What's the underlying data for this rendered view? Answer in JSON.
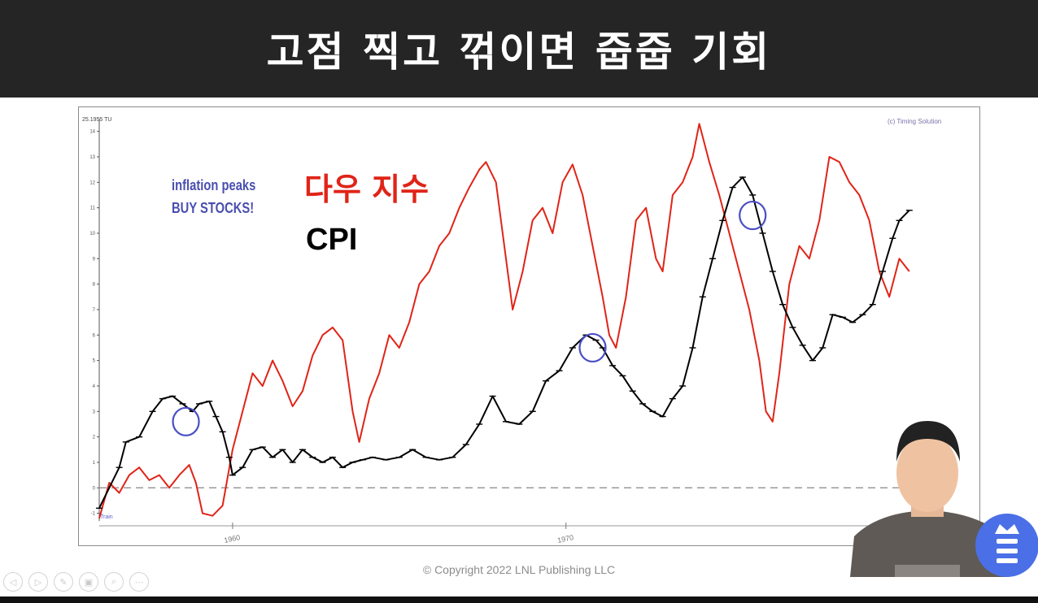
{
  "title": "고점 찍고 꺾이면 줍줍 기회",
  "chart_data": {
    "type": "line",
    "header_label": "25.1955 TU",
    "source_label": "(c) Timing Solution",
    "corner_label": "Train",
    "x_tick_labels": [
      "1960",
      "1970"
    ],
    "y_ticks": [
      -1,
      0,
      1,
      2,
      3,
      4,
      5,
      6,
      7,
      8,
      9,
      10,
      11,
      12,
      13,
      14
    ],
    "ylim": [
      -1.3,
      14.5
    ],
    "xlim": [
      1956.0,
      1981.5
    ],
    "zero_line": "dashed",
    "grid": false,
    "series": [
      {
        "name": "CPI",
        "color": "#000000",
        "marker": "tick",
        "points": [
          [
            1956.0,
            -0.8
          ],
          [
            1956.6,
            0.8
          ],
          [
            1956.8,
            1.8
          ],
          [
            1957.2,
            2.0
          ],
          [
            1957.6,
            3.0
          ],
          [
            1957.9,
            3.5
          ],
          [
            1958.2,
            3.6
          ],
          [
            1958.5,
            3.3
          ],
          [
            1958.8,
            3.0
          ],
          [
            1959.0,
            3.3
          ],
          [
            1959.3,
            3.4
          ],
          [
            1959.5,
            2.8
          ],
          [
            1959.7,
            2.2
          ],
          [
            1959.9,
            1.2
          ],
          [
            1960.0,
            0.5
          ],
          [
            1960.3,
            0.8
          ],
          [
            1960.6,
            1.5
          ],
          [
            1960.9,
            1.6
          ],
          [
            1961.2,
            1.2
          ],
          [
            1961.5,
            1.5
          ],
          [
            1961.8,
            1.0
          ],
          [
            1962.1,
            1.5
          ],
          [
            1962.4,
            1.2
          ],
          [
            1962.7,
            1.0
          ],
          [
            1963.0,
            1.2
          ],
          [
            1963.3,
            0.8
          ],
          [
            1963.6,
            1.0
          ],
          [
            1963.9,
            1.1
          ],
          [
            1964.2,
            1.2
          ],
          [
            1964.6,
            1.1
          ],
          [
            1965.0,
            1.2
          ],
          [
            1965.4,
            1.5
          ],
          [
            1965.8,
            1.2
          ],
          [
            1966.2,
            1.1
          ],
          [
            1966.6,
            1.2
          ],
          [
            1967.0,
            1.7
          ],
          [
            1967.4,
            2.5
          ],
          [
            1967.8,
            3.6
          ],
          [
            1968.2,
            2.6
          ],
          [
            1968.6,
            2.5
          ],
          [
            1969.0,
            3.0
          ],
          [
            1969.4,
            4.2
          ],
          [
            1969.8,
            4.6
          ],
          [
            1970.2,
            5.5
          ],
          [
            1970.6,
            6.0
          ],
          [
            1970.9,
            5.8
          ],
          [
            1971.1,
            5.5
          ],
          [
            1971.4,
            4.8
          ],
          [
            1971.7,
            4.4
          ],
          [
            1972.0,
            3.8
          ],
          [
            1972.3,
            3.3
          ],
          [
            1972.6,
            3.0
          ],
          [
            1972.9,
            2.8
          ],
          [
            1973.2,
            3.5
          ],
          [
            1973.5,
            4.0
          ],
          [
            1973.8,
            5.5
          ],
          [
            1974.1,
            7.5
          ],
          [
            1974.4,
            9.0
          ],
          [
            1974.7,
            10.5
          ],
          [
            1975.0,
            11.8
          ],
          [
            1975.3,
            12.2
          ],
          [
            1975.6,
            11.5
          ],
          [
            1975.9,
            10.0
          ],
          [
            1976.2,
            8.5
          ],
          [
            1976.5,
            7.2
          ],
          [
            1976.8,
            6.3
          ],
          [
            1977.1,
            5.6
          ],
          [
            1977.4,
            5.0
          ],
          [
            1977.7,
            5.5
          ],
          [
            1978.0,
            6.8
          ],
          [
            1978.3,
            6.7
          ],
          [
            1978.6,
            6.5
          ],
          [
            1978.9,
            6.8
          ],
          [
            1979.2,
            7.2
          ],
          [
            1979.5,
            8.5
          ],
          [
            1979.8,
            9.8
          ],
          [
            1980.0,
            10.5
          ],
          [
            1980.3,
            10.9
          ]
        ]
      },
      {
        "name": "다우 지수",
        "color": "#e02418",
        "marker": "none",
        "points": [
          [
            1956.0,
            -1.2
          ],
          [
            1956.3,
            0.2
          ],
          [
            1956.6,
            -0.2
          ],
          [
            1956.9,
            0.5
          ],
          [
            1957.2,
            0.8
          ],
          [
            1957.5,
            0.3
          ],
          [
            1957.8,
            0.5
          ],
          [
            1958.1,
            0.0
          ],
          [
            1958.4,
            0.5
          ],
          [
            1958.7,
            0.9
          ],
          [
            1958.9,
            0.2
          ],
          [
            1959.1,
            -1.0
          ],
          [
            1959.4,
            -1.1
          ],
          [
            1959.7,
            -0.7
          ],
          [
            1960.0,
            1.5
          ],
          [
            1960.3,
            3.0
          ],
          [
            1960.6,
            4.5
          ],
          [
            1960.9,
            4.0
          ],
          [
            1961.2,
            5.0
          ],
          [
            1961.5,
            4.2
          ],
          [
            1961.8,
            3.2
          ],
          [
            1962.1,
            3.8
          ],
          [
            1962.4,
            5.2
          ],
          [
            1962.7,
            6.0
          ],
          [
            1963.0,
            6.3
          ],
          [
            1963.3,
            5.8
          ],
          [
            1963.6,
            3.0
          ],
          [
            1963.8,
            1.8
          ],
          [
            1964.1,
            3.5
          ],
          [
            1964.4,
            4.5
          ],
          [
            1964.7,
            6.0
          ],
          [
            1965.0,
            5.5
          ],
          [
            1965.3,
            6.5
          ],
          [
            1965.6,
            8.0
          ],
          [
            1965.9,
            8.5
          ],
          [
            1966.2,
            9.5
          ],
          [
            1966.5,
            10.0
          ],
          [
            1966.8,
            11.0
          ],
          [
            1967.1,
            11.8
          ],
          [
            1967.4,
            12.5
          ],
          [
            1967.6,
            12.8
          ],
          [
            1967.9,
            12.0
          ],
          [
            1968.2,
            9.0
          ],
          [
            1968.4,
            7.0
          ],
          [
            1968.7,
            8.5
          ],
          [
            1969.0,
            10.5
          ],
          [
            1969.3,
            11.0
          ],
          [
            1969.6,
            10.0
          ],
          [
            1969.9,
            12.0
          ],
          [
            1970.2,
            12.7
          ],
          [
            1970.5,
            11.5
          ],
          [
            1970.8,
            9.5
          ],
          [
            1971.1,
            7.5
          ],
          [
            1971.3,
            6.0
          ],
          [
            1971.5,
            5.5
          ],
          [
            1971.8,
            7.5
          ],
          [
            1972.1,
            10.5
          ],
          [
            1972.4,
            11.0
          ],
          [
            1972.7,
            9.0
          ],
          [
            1972.9,
            8.5
          ],
          [
            1973.2,
            11.5
          ],
          [
            1973.5,
            12.0
          ],
          [
            1973.8,
            13.0
          ],
          [
            1974.0,
            14.3
          ],
          [
            1974.3,
            12.8
          ],
          [
            1974.6,
            11.5
          ],
          [
            1974.9,
            10.0
          ],
          [
            1975.2,
            8.5
          ],
          [
            1975.5,
            7.0
          ],
          [
            1975.8,
            5.0
          ],
          [
            1976.0,
            3.0
          ],
          [
            1976.2,
            2.6
          ],
          [
            1976.4,
            4.5
          ],
          [
            1976.7,
            8.0
          ],
          [
            1977.0,
            9.5
          ],
          [
            1977.3,
            9.0
          ],
          [
            1977.6,
            10.5
          ],
          [
            1977.9,
            13.0
          ],
          [
            1978.2,
            12.8
          ],
          [
            1978.5,
            12.0
          ],
          [
            1978.8,
            11.5
          ],
          [
            1979.1,
            10.5
          ],
          [
            1979.4,
            8.5
          ],
          [
            1979.7,
            7.5
          ],
          [
            1980.0,
            9.0
          ],
          [
            1980.3,
            8.5
          ]
        ]
      }
    ],
    "highlight_circles": [
      {
        "x": 1958.6,
        "y": 2.6
      },
      {
        "x": 1970.8,
        "y": 5.5
      },
      {
        "x": 1975.6,
        "y": 10.7
      }
    ],
    "annotations": {
      "inflation_line1": "inflation peaks",
      "inflation_line2": "BUY STOCKS!",
      "dow_label": "다우 지수",
      "cpi_label": "CPI"
    }
  },
  "copyright": "© Copyright 2022 LNL Publishing LLC",
  "player_controls": [
    {
      "icon": "back-icon",
      "glyph": "◁"
    },
    {
      "icon": "forward-icon",
      "glyph": "▷"
    },
    {
      "icon": "pen-icon",
      "glyph": "✎"
    },
    {
      "icon": "slides-icon",
      "glyph": "▣"
    },
    {
      "icon": "zoom-icon",
      "glyph": "⌕"
    },
    {
      "icon": "more-icon",
      "glyph": "⋯"
    }
  ],
  "colors": {
    "title_bar": "#252525",
    "cpi": "#000000",
    "dow": "#e02418",
    "circle": "#4a4fc4",
    "annotation_blue": "#4a4fb0",
    "badge": "#4b6fe6"
  }
}
